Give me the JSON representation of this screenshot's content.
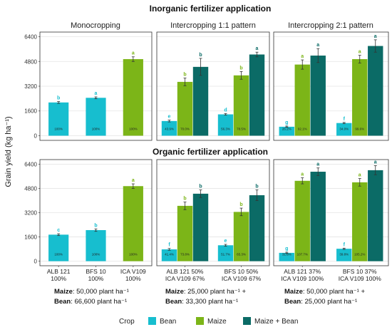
{
  "colors": {
    "Bean": "#17becf",
    "Maize": "#7cb518",
    "Maize + Bean": "#0b6b66"
  },
  "chart_data": {
    "type": "bar",
    "ylabel": "Grain yield (kg ha⁻¹)",
    "ylim": [
      -300,
      6700
    ],
    "yticks": [
      0,
      1600,
      3200,
      4800,
      6400
    ],
    "grid": true,
    "legend": {
      "title": "Crop",
      "placement": "bottom",
      "entries": [
        "Bean",
        "Maize",
        "Maize + Bean"
      ]
    },
    "sections": [
      {
        "title": "Inorganic fertilizer application",
        "panels": [
          {
            "title": "Monocropping",
            "groups": [
              {
                "category": [
                  "ALB 121",
                  "100%"
                ],
                "bars": [
                  {
                    "crop": "Bean",
                    "value": 2150,
                    "err": 60,
                    "letter": "b",
                    "pct": "100%"
                  }
                ]
              },
              {
                "category": [
                  "BFS 10",
                  "100%"
                ],
                "bars": [
                  {
                    "crop": "Bean",
                    "value": 2450,
                    "err": 60,
                    "letter": "a",
                    "pct": "100%"
                  }
                ]
              },
              {
                "category": [
                  "ICA V109",
                  "100%"
                ],
                "bars": [
                  {
                    "crop": "Maize",
                    "value": 4950,
                    "err": 150,
                    "letter": "a",
                    "pct": "100%"
                  }
                ]
              }
            ]
          },
          {
            "title": "Intercropping 1:1 pattern",
            "groups": [
              {
                "category": [],
                "bars": [
                  {
                    "crop": "Bean",
                    "value": 950,
                    "err": 60,
                    "letter": "e",
                    "pct": "43.9%"
                  },
                  {
                    "crop": "Maize",
                    "value": 3480,
                    "err": 250,
                    "letter": "b",
                    "pct": "70.0%"
                  },
                  {
                    "crop": "Maize + Bean",
                    "value": 4450,
                    "err": 550,
                    "letter": "b",
                    "pct": ""
                  }
                ]
              },
              {
                "category": [],
                "bars": [
                  {
                    "crop": "Bean",
                    "value": 1380,
                    "err": 50,
                    "letter": "d",
                    "pct": "56.3%"
                  },
                  {
                    "crop": "Maize",
                    "value": 3900,
                    "err": 250,
                    "letter": "b",
                    "pct": "78.5%"
                  },
                  {
                    "crop": "Maize + Bean",
                    "value": 5250,
                    "err": 150,
                    "letter": "a",
                    "pct": ""
                  }
                ]
              }
            ]
          },
          {
            "title": "Intercropping 2:1 pattern",
            "groups": [
              {
                "category": [],
                "bars": [
                  {
                    "crop": "Bean",
                    "value": 580,
                    "err": 40,
                    "letter": "g",
                    "pct": "26.2%"
                  },
                  {
                    "crop": "Maize",
                    "value": 4600,
                    "err": 300,
                    "letter": "a",
                    "pct": "92.1%"
                  },
                  {
                    "crop": "Maize + Bean",
                    "value": 5180,
                    "err": 450,
                    "letter": "a",
                    "pct": ""
                  }
                ]
              },
              {
                "category": [],
                "bars": [
                  {
                    "crop": "Bean",
                    "value": 820,
                    "err": 40,
                    "letter": "f",
                    "pct": "34.0%"
                  },
                  {
                    "crop": "Maize",
                    "value": 4950,
                    "err": 250,
                    "letter": "a",
                    "pct": "99.6%"
                  },
                  {
                    "crop": "Maize + Bean",
                    "value": 5800,
                    "err": 400,
                    "letter": "a",
                    "pct": ""
                  }
                ]
              }
            ]
          }
        ]
      },
      {
        "title": "Organic fertilizer application",
        "panels": [
          {
            "title": "",
            "groups": [
              {
                "category": [
                  "ALB 121",
                  "100%"
                ],
                "bars": [
                  {
                    "crop": "Bean",
                    "value": 1750,
                    "err": 60,
                    "letter": "c",
                    "pct": "100%"
                  }
                ]
              },
              {
                "category": [
                  "BFS 10",
                  "100%"
                ],
                "bars": [
                  {
                    "crop": "Bean",
                    "value": 2050,
                    "err": 80,
                    "letter": "b",
                    "pct": "100%"
                  }
                ]
              },
              {
                "category": [
                  "ICA V109",
                  "100%"
                ],
                "bars": [
                  {
                    "crop": "Maize",
                    "value": 4950,
                    "err": 150,
                    "letter": "a",
                    "pct": "100%"
                  }
                ]
              }
            ]
          },
          {
            "title": "",
            "groups": [
              {
                "category": [
                  "ALB 121 50%",
                  "ICA V109 67%"
                ],
                "bars": [
                  {
                    "crop": "Bean",
                    "value": 780,
                    "err": 60,
                    "letter": "f",
                    "pct": "41.4%"
                  },
                  {
                    "crop": "Maize",
                    "value": 3650,
                    "err": 250,
                    "letter": "b",
                    "pct": "73.8%"
                  },
                  {
                    "crop": "Maize + Bean",
                    "value": 4450,
                    "err": 250,
                    "letter": "b",
                    "pct": ""
                  }
                ]
              },
              {
                "category": [
                  "BFS 10 50%",
                  "ICA V109 67%"
                ],
                "bars": [
                  {
                    "crop": "Bean",
                    "value": 1050,
                    "err": 60,
                    "letter": "e",
                    "pct": "51.7%"
                  },
                  {
                    "crop": "Maize",
                    "value": 3250,
                    "err": 250,
                    "letter": "b",
                    "pct": "65.3%"
                  },
                  {
                    "crop": "Maize + Bean",
                    "value": 4350,
                    "err": 350,
                    "letter": "b",
                    "pct": ""
                  }
                ]
              }
            ]
          },
          {
            "title": "",
            "groups": [
              {
                "category": [
                  "ALB 121 37%",
                  "ICA V109 100%"
                ],
                "bars": [
                  {
                    "crop": "Bean",
                    "value": 550,
                    "err": 40,
                    "letter": "g",
                    "pct": "31.6%"
                  },
                  {
                    "crop": "Maize",
                    "value": 5300,
                    "err": 200,
                    "letter": "a",
                    "pct": "107.7%"
                  },
                  {
                    "crop": "Maize + Bean",
                    "value": 5900,
                    "err": 250,
                    "letter": "a",
                    "pct": ""
                  }
                ]
              },
              {
                "category": [
                  "BFS 10 37%",
                  "ICA V109 100%"
                ],
                "bars": [
                  {
                    "crop": "Bean",
                    "value": 820,
                    "err": 40,
                    "letter": "f",
                    "pct": "39.8%"
                  },
                  {
                    "crop": "Maize",
                    "value": 5200,
                    "err": 250,
                    "letter": "a",
                    "pct": "105.2%"
                  },
                  {
                    "crop": "Maize + Bean",
                    "value": 6000,
                    "err": 300,
                    "letter": "a",
                    "pct": ""
                  }
                ]
              }
            ]
          }
        ]
      }
    ],
    "annotations": [
      {
        "bold": "Maize",
        "text": ": 50,000 plant ha⁻¹"
      },
      {
        "bold": "Bean",
        "text": ": 66,600 plant ha⁻¹"
      },
      {
        "bold": "Maize",
        "text": ": 25,000 plant ha⁻¹ +"
      },
      {
        "bold": "Bean",
        "text": ": 33,300 plant ha⁻¹"
      },
      {
        "bold": "Maize",
        "text": ": 50,000 plant ha⁻¹ +"
      },
      {
        "bold": "Bean",
        "text": ": 25,000 plant ha⁻¹"
      }
    ]
  }
}
